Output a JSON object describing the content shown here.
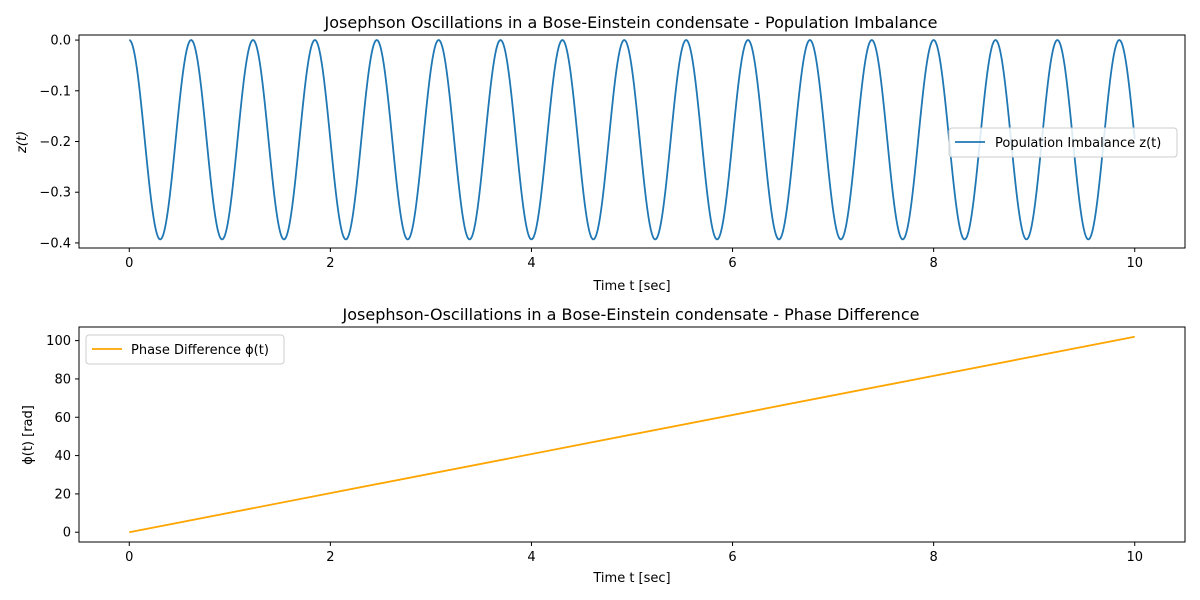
{
  "chart_data": [
    {
      "type": "line",
      "title": "Josephson Oscillations in a Bose-Einstein condensate - Population Imbalance",
      "xlabel": "Time t [sec]",
      "ylabel": "z(t)",
      "xlim": [
        -0.5,
        10.5
      ],
      "ylim": [
        -0.41,
        0.01
      ],
      "xticks": [
        0,
        2,
        4,
        6,
        8,
        10
      ],
      "xtick_labels": [
        "0",
        "2",
        "4",
        "6",
        "8",
        "10"
      ],
      "yticks": [
        0.0,
        -0.1,
        -0.2,
        -0.3,
        -0.4
      ],
      "ytick_labels": [
        "0.0",
        "−0.1",
        "−0.2",
        "−0.3",
        "−0.4"
      ],
      "grid": false,
      "legend": "center-right",
      "series": [
        {
          "name": "Population Imbalance z(t)",
          "color": "#1f77b4",
          "function": "z(t) = -A·sin²(π·t/T)",
          "amplitude": 0.393,
          "period": 0.6154,
          "x_range": [
            0,
            10
          ]
        }
      ]
    },
    {
      "type": "line",
      "title": "Josephson-Oscillations in a Bose-Einstein condensate - Phase Difference",
      "xlabel": "Time t [sec]",
      "ylabel": "ϕ(t) [rad]",
      "xlim": [
        -0.5,
        10.5
      ],
      "ylim": [
        -5.1,
        107.1
      ],
      "xticks": [
        0,
        2,
        4,
        6,
        8,
        10
      ],
      "xtick_labels": [
        "0",
        "2",
        "4",
        "6",
        "8",
        "10"
      ],
      "yticks": [
        0,
        20,
        40,
        60,
        80,
        100
      ],
      "ytick_labels": [
        "0",
        "20",
        "40",
        "60",
        "80",
        "100"
      ],
      "grid": false,
      "legend": "upper-left",
      "series": [
        {
          "name": "Phase Difference ϕ(t)",
          "color": "#ffa500",
          "x": [
            0,
            10
          ],
          "y": [
            0,
            102
          ]
        }
      ]
    }
  ]
}
